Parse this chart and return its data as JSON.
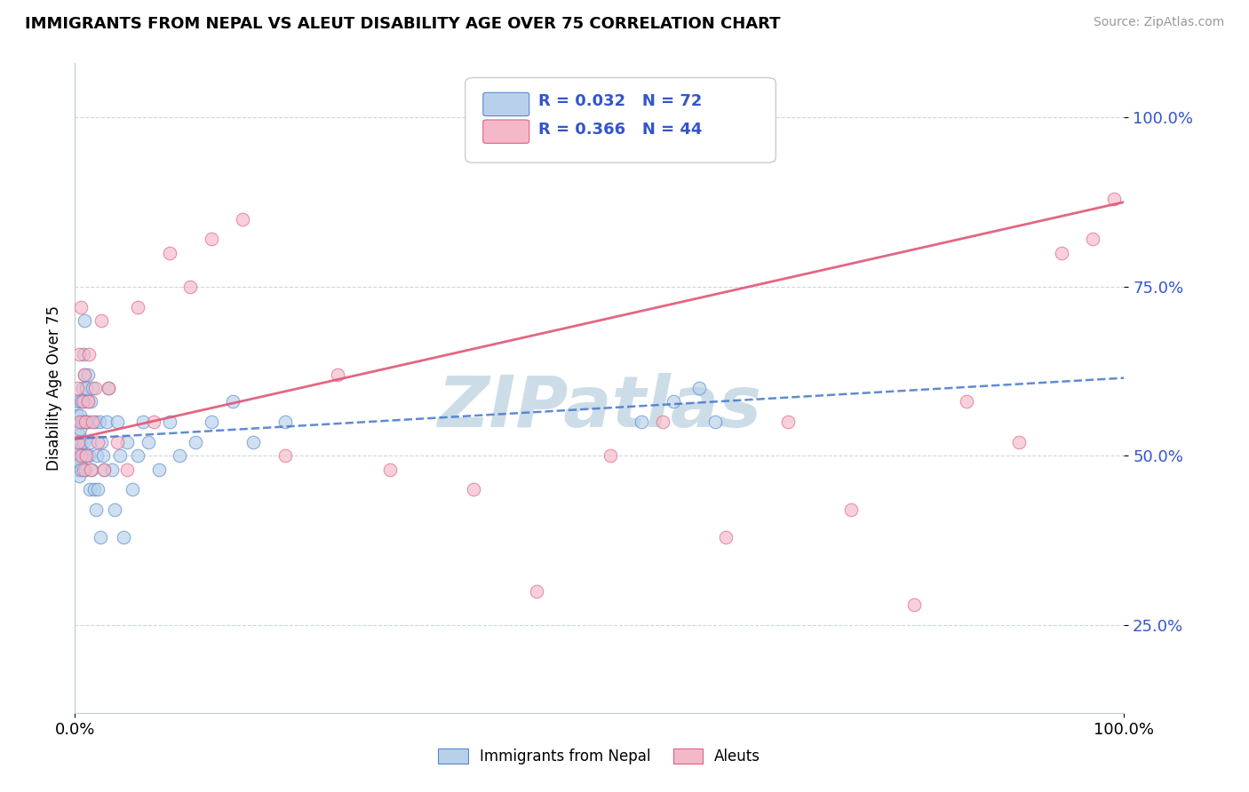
{
  "title": "IMMIGRANTS FROM NEPAL VS ALEUT DISABILITY AGE OVER 75 CORRELATION CHART",
  "source": "Source: ZipAtlas.com",
  "ylabel": "Disability Age Over 75",
  "x_label_bottom_left": "0.0%",
  "x_label_bottom_right": "100.0%",
  "legend_blue_label": "Immigrants from Nepal",
  "legend_pink_label": "Aleuts",
  "blue_fill_color": "#b8d0ea",
  "pink_fill_color": "#f5b8c8",
  "blue_edge_color": "#5588cc",
  "pink_edge_color": "#e06080",
  "blue_line_color": "#4477cc",
  "pink_line_color": "#e05575",
  "r_value_color": "#3355cc",
  "n_value_color": "#3355cc",
  "ytick_labels": [
    "25.0%",
    "50.0%",
    "75.0%",
    "100.0%"
  ],
  "ytick_values": [
    0.25,
    0.5,
    0.75,
    1.0
  ],
  "xlim": [
    0.0,
    1.0
  ],
  "ylim": [
    0.12,
    1.08
  ],
  "blue_trend_y0": 0.525,
  "blue_trend_y1": 0.615,
  "pink_trend_y0": 0.525,
  "pink_trend_y1": 0.875,
  "watermark": "ZIPatlas",
  "watermark_color": "#ccdde8",
  "background_color": "#ffffff",
  "grid_color": "#c8d4dc",
  "marker_size": 110,
  "marker_alpha": 0.65,
  "marker_linewidth": 0.8,
  "blue_scatter_x": [
    0.001,
    0.002,
    0.002,
    0.003,
    0.003,
    0.003,
    0.004,
    0.004,
    0.004,
    0.005,
    0.005,
    0.005,
    0.005,
    0.006,
    0.006,
    0.006,
    0.007,
    0.007,
    0.007,
    0.008,
    0.008,
    0.008,
    0.009,
    0.009,
    0.01,
    0.01,
    0.01,
    0.011,
    0.011,
    0.012,
    0.012,
    0.013,
    0.013,
    0.014,
    0.015,
    0.015,
    0.016,
    0.017,
    0.018,
    0.019,
    0.02,
    0.021,
    0.022,
    0.023,
    0.024,
    0.025,
    0.027,
    0.028,
    0.03,
    0.032,
    0.035,
    0.038,
    0.04,
    0.043,
    0.046,
    0.05,
    0.055,
    0.06,
    0.065,
    0.07,
    0.08,
    0.09,
    0.1,
    0.115,
    0.13,
    0.15,
    0.17,
    0.2,
    0.54,
    0.57,
    0.595,
    0.61
  ],
  "blue_scatter_y": [
    0.52,
    0.56,
    0.48,
    0.55,
    0.5,
    0.58,
    0.52,
    0.47,
    0.53,
    0.56,
    0.49,
    0.54,
    0.51,
    0.58,
    0.52,
    0.48,
    0.6,
    0.55,
    0.5,
    0.65,
    0.58,
    0.52,
    0.7,
    0.62,
    0.55,
    0.5,
    0.48,
    0.6,
    0.55,
    0.62,
    0.58,
    0.55,
    0.5,
    0.45,
    0.52,
    0.58,
    0.48,
    0.6,
    0.45,
    0.55,
    0.42,
    0.5,
    0.45,
    0.55,
    0.38,
    0.52,
    0.5,
    0.48,
    0.55,
    0.6,
    0.48,
    0.42,
    0.55,
    0.5,
    0.38,
    0.52,
    0.45,
    0.5,
    0.55,
    0.52,
    0.48,
    0.55,
    0.5,
    0.52,
    0.55,
    0.58,
    0.52,
    0.55,
    0.55,
    0.58,
    0.6,
    0.55
  ],
  "pink_scatter_x": [
    0.002,
    0.003,
    0.004,
    0.005,
    0.006,
    0.006,
    0.007,
    0.008,
    0.009,
    0.01,
    0.011,
    0.012,
    0.013,
    0.015,
    0.017,
    0.019,
    0.022,
    0.025,
    0.028,
    0.032,
    0.04,
    0.05,
    0.06,
    0.075,
    0.09,
    0.11,
    0.13,
    0.16,
    0.2,
    0.25,
    0.3,
    0.38,
    0.44,
    0.51,
    0.56,
    0.62,
    0.68,
    0.74,
    0.8,
    0.85,
    0.9,
    0.94,
    0.97,
    0.99
  ],
  "pink_scatter_y": [
    0.6,
    0.52,
    0.65,
    0.55,
    0.5,
    0.72,
    0.58,
    0.48,
    0.62,
    0.55,
    0.5,
    0.58,
    0.65,
    0.48,
    0.55,
    0.6,
    0.52,
    0.7,
    0.48,
    0.6,
    0.52,
    0.48,
    0.72,
    0.55,
    0.8,
    0.75,
    0.82,
    0.85,
    0.5,
    0.62,
    0.48,
    0.45,
    0.3,
    0.5,
    0.55,
    0.38,
    0.55,
    0.42,
    0.28,
    0.58,
    0.52,
    0.8,
    0.82,
    0.88
  ]
}
